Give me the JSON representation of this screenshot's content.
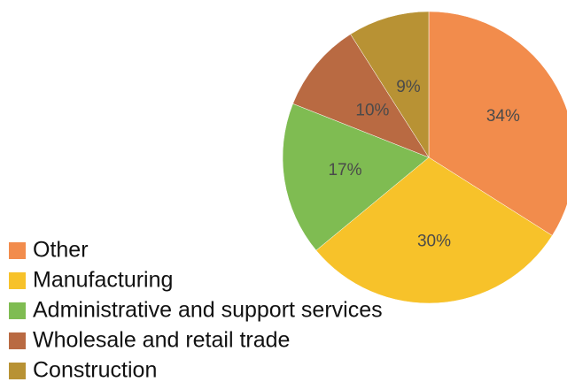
{
  "chart_data": {
    "type": "pie",
    "categories": [
      "Other",
      "Manufacturing",
      "Administrative and support services",
      "Wholesale and retail trade",
      "Construction"
    ],
    "values": [
      34,
      30,
      17,
      10,
      9
    ],
    "value_labels": [
      "34%",
      "30%",
      "17%",
      "10%",
      "9%"
    ],
    "colors": [
      "#f28c4c",
      "#f7c22a",
      "#7fbc52",
      "#b96a42",
      "#b89234"
    ],
    "legend": "bottom-left"
  }
}
